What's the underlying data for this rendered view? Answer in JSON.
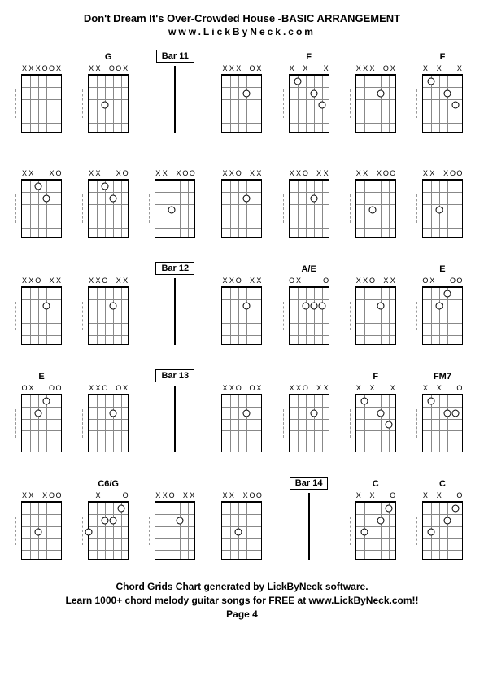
{
  "title": "Don't Dream It's Over-Crowded House -BASIC ARRANGEMENT",
  "subtitle": "www.LickByNeck.com",
  "footer_line1": "Chord Grids Chart generated by LickByNeck software.",
  "footer_line2": "Learn 1000+ chord melody guitar songs for FREE at www.LickByNeck.com!!",
  "footer_page": "Page 4",
  "colors": {
    "background": "#ffffff",
    "grid_line": "#888888",
    "border": "#000000",
    "dash": "#999999"
  },
  "fretboard": {
    "width": 50,
    "height": 72,
    "frets": 5,
    "strings": 6
  },
  "rows": [
    {
      "cells": [
        {
          "type": "chord",
          "label": "",
          "mutes": [
            "X",
            "X",
            "X",
            "",
            "",
            "X"
          ],
          "opens": [
            0,
            0,
            0,
            1,
            1,
            0
          ],
          "dots": []
        },
        {
          "type": "chord",
          "label": "G",
          "mutes": [
            "X",
            "X",
            "",
            "",
            "",
            "X"
          ],
          "opens": [
            0,
            0,
            0,
            1,
            1,
            0
          ],
          "dots": [
            {
              "s": 2,
              "f": 3
            }
          ]
        },
        {
          "type": "bar",
          "label": "Bar 11"
        },
        {
          "type": "chord",
          "label": "",
          "mutes": [
            "X",
            "X",
            "X",
            "",
            "",
            "X"
          ],
          "opens": [
            0,
            0,
            0,
            0,
            1,
            0
          ],
          "dots": [
            {
              "s": 3,
              "f": 2
            }
          ]
        },
        {
          "type": "chord",
          "label": "F",
          "mutes": [
            "X",
            "",
            "X",
            "",
            "",
            "X"
          ],
          "opens": [
            0,
            0,
            0,
            0,
            0,
            0
          ],
          "dots": [
            {
              "s": 1,
              "f": 1
            },
            {
              "s": 3,
              "f": 2
            },
            {
              "s": 4,
              "f": 3
            }
          ]
        },
        {
          "type": "chord",
          "label": "",
          "mutes": [
            "X",
            "X",
            "X",
            "",
            "",
            "X"
          ],
          "opens": [
            0,
            0,
            0,
            0,
            1,
            0
          ],
          "dots": [
            {
              "s": 3,
              "f": 2
            }
          ]
        },
        {
          "type": "chord",
          "label": "F",
          "mutes": [
            "X",
            "",
            "X",
            "",
            "",
            "X"
          ],
          "opens": [
            0,
            0,
            0,
            0,
            0,
            0
          ],
          "dots": [
            {
              "s": 1,
              "f": 1
            },
            {
              "s": 3,
              "f": 2
            },
            {
              "s": 4,
              "f": 3
            }
          ]
        }
      ]
    },
    {
      "cells": [
        {
          "type": "chord",
          "label": "",
          "mutes": [
            "X",
            "X",
            "",
            "",
            "X",
            ""
          ],
          "opens": [
            0,
            0,
            0,
            0,
            0,
            1
          ],
          "dots": [
            {
              "s": 2,
              "f": 1
            },
            {
              "s": 3,
              "f": 2
            }
          ]
        },
        {
          "type": "chord",
          "label": "",
          "mutes": [
            "X",
            "X",
            "",
            "",
            "X",
            ""
          ],
          "opens": [
            0,
            0,
            0,
            0,
            0,
            1
          ],
          "dots": [
            {
              "s": 2,
              "f": 1
            },
            {
              "s": 3,
              "f": 2
            }
          ]
        },
        {
          "type": "chord",
          "label": "",
          "mutes": [
            "X",
            "X",
            "",
            "X",
            "",
            ""
          ],
          "opens": [
            0,
            0,
            0,
            0,
            1,
            1
          ],
          "dots": [
            {
              "s": 2,
              "f": 3
            }
          ]
        },
        {
          "type": "chord",
          "label": "",
          "mutes": [
            "X",
            "X",
            "",
            "",
            "X",
            "X"
          ],
          "opens": [
            0,
            0,
            1,
            0,
            0,
            0
          ],
          "dots": [
            {
              "s": 3,
              "f": 2
            }
          ]
        },
        {
          "type": "chord",
          "label": "",
          "mutes": [
            "X",
            "X",
            "",
            "",
            "X",
            "X"
          ],
          "opens": [
            0,
            0,
            1,
            0,
            0,
            0
          ],
          "dots": [
            {
              "s": 3,
              "f": 2
            }
          ]
        },
        {
          "type": "chord",
          "label": "",
          "mutes": [
            "X",
            "X",
            "",
            "X",
            "",
            ""
          ],
          "opens": [
            0,
            0,
            0,
            0,
            1,
            1
          ],
          "dots": [
            {
              "s": 2,
              "f": 3
            }
          ]
        },
        {
          "type": "chord",
          "label": "",
          "mutes": [
            "X",
            "X",
            "",
            "X",
            "",
            ""
          ],
          "opens": [
            0,
            0,
            0,
            0,
            1,
            1
          ],
          "dots": [
            {
              "s": 2,
              "f": 3
            }
          ]
        }
      ]
    },
    {
      "cells": [
        {
          "type": "chord",
          "label": "",
          "mutes": [
            "X",
            "X",
            "",
            "",
            "X",
            "X"
          ],
          "opens": [
            0,
            0,
            1,
            0,
            0,
            0
          ],
          "dots": [
            {
              "s": 3,
              "f": 2
            }
          ]
        },
        {
          "type": "chord",
          "label": "",
          "mutes": [
            "X",
            "X",
            "",
            "",
            "X",
            "X"
          ],
          "opens": [
            0,
            0,
            1,
            0,
            0,
            0
          ],
          "dots": [
            {
              "s": 3,
              "f": 2
            }
          ]
        },
        {
          "type": "bar",
          "label": "Bar 12"
        },
        {
          "type": "chord",
          "label": "",
          "mutes": [
            "X",
            "X",
            "",
            "",
            "X",
            "X"
          ],
          "opens": [
            0,
            0,
            1,
            0,
            0,
            0
          ],
          "dots": [
            {
              "s": 3,
              "f": 2
            }
          ]
        },
        {
          "type": "chord",
          "label": "A/E",
          "mutes": [
            "",
            "X",
            "",
            "",
            "",
            ""
          ],
          "opens": [
            1,
            0,
            0,
            0,
            0,
            1
          ],
          "dots": [
            {
              "s": 2,
              "f": 2
            },
            {
              "s": 3,
              "f": 2
            },
            {
              "s": 4,
              "f": 2
            }
          ]
        },
        {
          "type": "chord",
          "label": "",
          "mutes": [
            "X",
            "X",
            "",
            "",
            "X",
            "X"
          ],
          "opens": [
            0,
            0,
            1,
            0,
            0,
            0
          ],
          "dots": [
            {
              "s": 3,
              "f": 2
            }
          ]
        },
        {
          "type": "chord",
          "label": "E",
          "mutes": [
            "",
            "X",
            "",
            "",
            "",
            ""
          ],
          "opens": [
            1,
            0,
            0,
            0,
            1,
            1
          ],
          "dots": [
            {
              "s": 2,
              "f": 2
            },
            {
              "s": 3,
              "f": 1
            }
          ]
        }
      ]
    },
    {
      "cells": [
        {
          "type": "chord",
          "label": "E",
          "mutes": [
            "",
            "X",
            "",
            "",
            "",
            ""
          ],
          "opens": [
            1,
            0,
            0,
            0,
            1,
            1
          ],
          "dots": [
            {
              "s": 2,
              "f": 2
            },
            {
              "s": 3,
              "f": 1
            }
          ]
        },
        {
          "type": "chord",
          "label": "",
          "mutes": [
            "X",
            "X",
            "",
            "",
            "",
            "X"
          ],
          "opens": [
            0,
            0,
            1,
            0,
            1,
            0
          ],
          "dots": [
            {
              "s": 3,
              "f": 2
            }
          ]
        },
        {
          "type": "bar",
          "label": "Bar 13"
        },
        {
          "type": "chord",
          "label": "",
          "mutes": [
            "X",
            "X",
            "",
            "",
            "",
            "X"
          ],
          "opens": [
            0,
            0,
            1,
            0,
            1,
            0
          ],
          "dots": [
            {
              "s": 3,
              "f": 2
            }
          ]
        },
        {
          "type": "chord",
          "label": "",
          "mutes": [
            "X",
            "X",
            "",
            "",
            "X",
            "X"
          ],
          "opens": [
            0,
            0,
            1,
            0,
            0,
            0
          ],
          "dots": [
            {
              "s": 3,
              "f": 2
            }
          ]
        },
        {
          "type": "chord",
          "label": "F",
          "mutes": [
            "X",
            "",
            "X",
            "",
            "",
            "X"
          ],
          "opens": [
            0,
            0,
            0,
            0,
            0,
            0
          ],
          "dots": [
            {
              "s": 1,
              "f": 1
            },
            {
              "s": 3,
              "f": 2
            },
            {
              "s": 4,
              "f": 3
            }
          ]
        },
        {
          "type": "chord",
          "label": "FM7",
          "mutes": [
            "X",
            "",
            "X",
            "",
            "",
            ""
          ],
          "opens": [
            0,
            0,
            0,
            0,
            0,
            1
          ],
          "dots": [
            {
              "s": 1,
              "f": 1
            },
            {
              "s": 3,
              "f": 2
            },
            {
              "s": 4,
              "f": 2
            }
          ]
        }
      ]
    },
    {
      "cells": [
        {
          "type": "chord",
          "label": "",
          "mutes": [
            "X",
            "X",
            "",
            "X",
            "",
            ""
          ],
          "opens": [
            0,
            0,
            0,
            0,
            1,
            1
          ],
          "dots": [
            {
              "s": 2,
              "f": 3
            }
          ]
        },
        {
          "type": "chord",
          "label": "C6/G",
          "mutes": [
            "",
            "X",
            "",
            "",
            "",
            ""
          ],
          "opens": [
            0,
            0,
            0,
            0,
            0,
            1
          ],
          "dots": [
            {
              "s": 0,
              "f": 3
            },
            {
              "s": 2,
              "f": 2
            },
            {
              "s": 3,
              "f": 2
            },
            {
              "s": 4,
              "f": 1
            }
          ]
        },
        {
          "type": "chord",
          "label": "",
          "mutes": [
            "X",
            "X",
            "",
            "",
            "X",
            "X"
          ],
          "opens": [
            0,
            0,
            1,
            0,
            0,
            0
          ],
          "dots": [
            {
              "s": 3,
              "f": 2
            }
          ]
        },
        {
          "type": "chord",
          "label": "",
          "mutes": [
            "X",
            "X",
            "",
            "X",
            "",
            ""
          ],
          "opens": [
            0,
            0,
            0,
            0,
            1,
            1
          ],
          "dots": [
            {
              "s": 2,
              "f": 3
            }
          ]
        },
        {
          "type": "bar",
          "label": "Bar 14"
        },
        {
          "type": "chord",
          "label": "C",
          "mutes": [
            "X",
            "",
            "X",
            "",
            "",
            ""
          ],
          "opens": [
            0,
            0,
            0,
            0,
            0,
            1
          ],
          "dots": [
            {
              "s": 1,
              "f": 3
            },
            {
              "s": 3,
              "f": 2
            },
            {
              "s": 4,
              "f": 1
            }
          ]
        },
        {
          "type": "chord",
          "label": "C",
          "mutes": [
            "X",
            "",
            "X",
            "",
            "",
            ""
          ],
          "opens": [
            0,
            0,
            0,
            0,
            0,
            1
          ],
          "dots": [
            {
              "s": 1,
              "f": 3
            },
            {
              "s": 3,
              "f": 2
            },
            {
              "s": 4,
              "f": 1
            }
          ]
        }
      ]
    }
  ]
}
